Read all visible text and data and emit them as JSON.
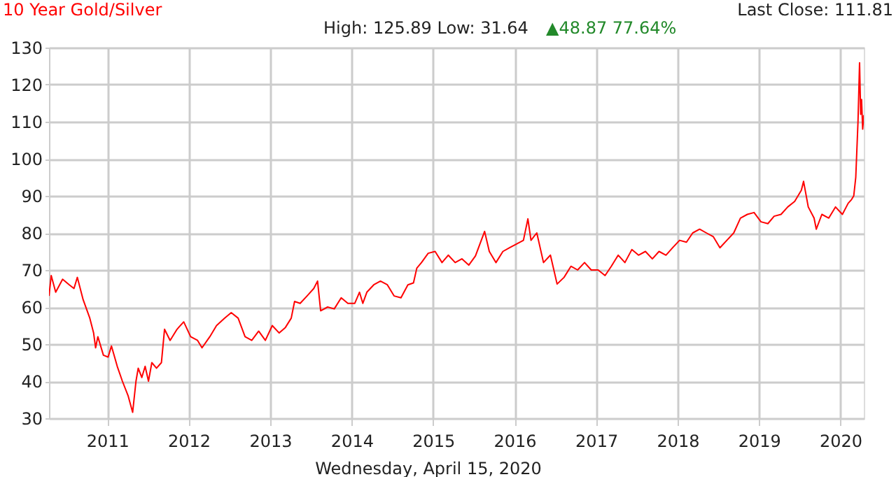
{
  "chart_data": {
    "type": "line",
    "title": "10 Year Gold/Silver",
    "annotations": [
      "High: 125.89 Low: 31.64",
      "▲48.87 77.64%",
      "Last Close: 111.81",
      "Wednesday, April 15, 2020"
    ],
    "x": [
      "2010-04-15",
      "2010-04-25",
      "2010-05-15",
      "2010-06-15",
      "2010-07-15",
      "2010-08-05",
      "2010-08-20",
      "2010-09-15",
      "2010-10-15",
      "2010-11-01",
      "2010-11-10",
      "2010-11-20",
      "2010-12-15",
      "2011-01-05",
      "2011-01-20",
      "2011-02-15",
      "2011-03-10",
      "2011-04-05",
      "2011-04-25",
      "2011-05-10",
      "2011-05-20",
      "2011-06-05",
      "2011-06-20",
      "2011-07-05",
      "2011-07-20",
      "2011-08-10",
      "2011-09-01",
      "2011-09-15",
      "2011-10-10",
      "2011-11-10",
      "2011-12-10",
      "2012-01-10",
      "2012-02-10",
      "2012-03-01",
      "2012-04-05",
      "2012-05-05",
      "2012-06-10",
      "2012-07-10",
      "2012-08-10",
      "2012-09-10",
      "2012-10-10",
      "2012-11-10",
      "2012-12-10",
      "2013-01-10",
      "2013-02-10",
      "2013-03-10",
      "2013-04-05",
      "2013-04-20",
      "2013-05-15",
      "2013-06-15",
      "2013-07-15",
      "2013-08-01",
      "2013-08-15",
      "2013-09-15",
      "2013-10-15",
      "2013-11-15",
      "2013-12-15",
      "2014-01-15",
      "2014-02-05",
      "2014-02-20",
      "2014-03-10",
      "2014-04-10",
      "2014-05-10",
      "2014-06-10",
      "2014-07-10",
      "2014-08-10",
      "2014-09-10",
      "2014-10-05",
      "2014-10-20",
      "2014-11-10",
      "2014-12-10",
      "2015-01-10",
      "2015-02-10",
      "2015-03-10",
      "2015-04-10",
      "2015-05-10",
      "2015-06-10",
      "2015-07-10",
      "2015-08-20",
      "2015-09-10",
      "2015-10-10",
      "2015-11-10",
      "2015-12-10",
      "2016-01-10",
      "2016-02-10",
      "2016-03-01",
      "2016-03-15",
      "2016-04-10",
      "2016-05-10",
      "2016-06-10",
      "2016-07-10",
      "2016-08-10",
      "2016-09-10",
      "2016-10-10",
      "2016-11-10",
      "2016-12-10",
      "2017-01-10",
      "2017-02-10",
      "2017-03-10",
      "2017-04-10",
      "2017-05-10",
      "2017-06-10",
      "2017-07-10",
      "2017-08-10",
      "2017-09-10",
      "2017-10-10",
      "2017-11-10",
      "2017-12-10",
      "2018-01-10",
      "2018-02-10",
      "2018-03-10",
      "2018-04-10",
      "2018-05-10",
      "2018-06-10",
      "2018-07-10",
      "2018-08-10",
      "2018-09-10",
      "2018-10-10",
      "2018-11-10",
      "2018-12-10",
      "2019-01-10",
      "2019-02-10",
      "2019-03-10",
      "2019-04-10",
      "2019-05-10",
      "2019-06-10",
      "2019-07-10",
      "2019-07-20",
      "2019-08-10",
      "2019-09-05",
      "2019-09-15",
      "2019-10-10",
      "2019-11-10",
      "2019-12-10",
      "2020-01-10",
      "2020-02-05",
      "2020-02-20",
      "2020-03-01",
      "2020-03-10",
      "2020-03-20",
      "2020-03-27",
      "2020-04-01",
      "2020-04-05",
      "2020-04-10",
      "2020-04-15"
    ],
    "series": [
      {
        "color": "#ff0000",
        "values": [
          63,
          68.5,
          64,
          67.5,
          66,
          65,
          68,
          62,
          57,
          53,
          49,
          52,
          47,
          46.5,
          49.5,
          44,
          40,
          36,
          31.6,
          40,
          43.5,
          41,
          44,
          40,
          45,
          43.5,
          45,
          54,
          51,
          54,
          56,
          52,
          51,
          49,
          52,
          55,
          57,
          58.5,
          57,
          52,
          51,
          53.5,
          51,
          55,
          53,
          54.5,
          57,
          61.5,
          61,
          63,
          65,
          67,
          59,
          60,
          59.5,
          62.5,
          61,
          61,
          64,
          61,
          64,
          66,
          67,
          66,
          63,
          62.5,
          66,
          66.5,
          70.5,
          72,
          74.5,
          75,
          72,
          74,
          72,
          73,
          71.3,
          73.8,
          80.4,
          75,
          72,
          75,
          76,
          77,
          78,
          83.8,
          78,
          80,
          72,
          74,
          66.2,
          68,
          71,
          70,
          72,
          70,
          70,
          68.5,
          71,
          74,
          72,
          75.5,
          74,
          75,
          73,
          75,
          74,
          76,
          78,
          77.5,
          80,
          81,
          80,
          79,
          76,
          78,
          80,
          84,
          85,
          85.5,
          83,
          82.5,
          84.5,
          85,
          87,
          88.5,
          91.5,
          93.9,
          87,
          84,
          81,
          85,
          84,
          87,
          85,
          88,
          89,
          90,
          95,
          110,
          125.9,
          112,
          116,
          108,
          111.8
        ]
      }
    ],
    "xlim": [
      "2010-04-15",
      "2020-04-15"
    ],
    "xticks": [
      "2011",
      "2012",
      "2013",
      "2014",
      "2015",
      "2016",
      "2017",
      "2018",
      "2019",
      "2020"
    ],
    "ylim": [
      30,
      130
    ],
    "yticks": [
      30,
      40,
      50,
      60,
      70,
      80,
      90,
      100,
      110,
      120,
      130
    ],
    "grid": true,
    "legend": false,
    "line_style": "solid",
    "marker": "none"
  }
}
